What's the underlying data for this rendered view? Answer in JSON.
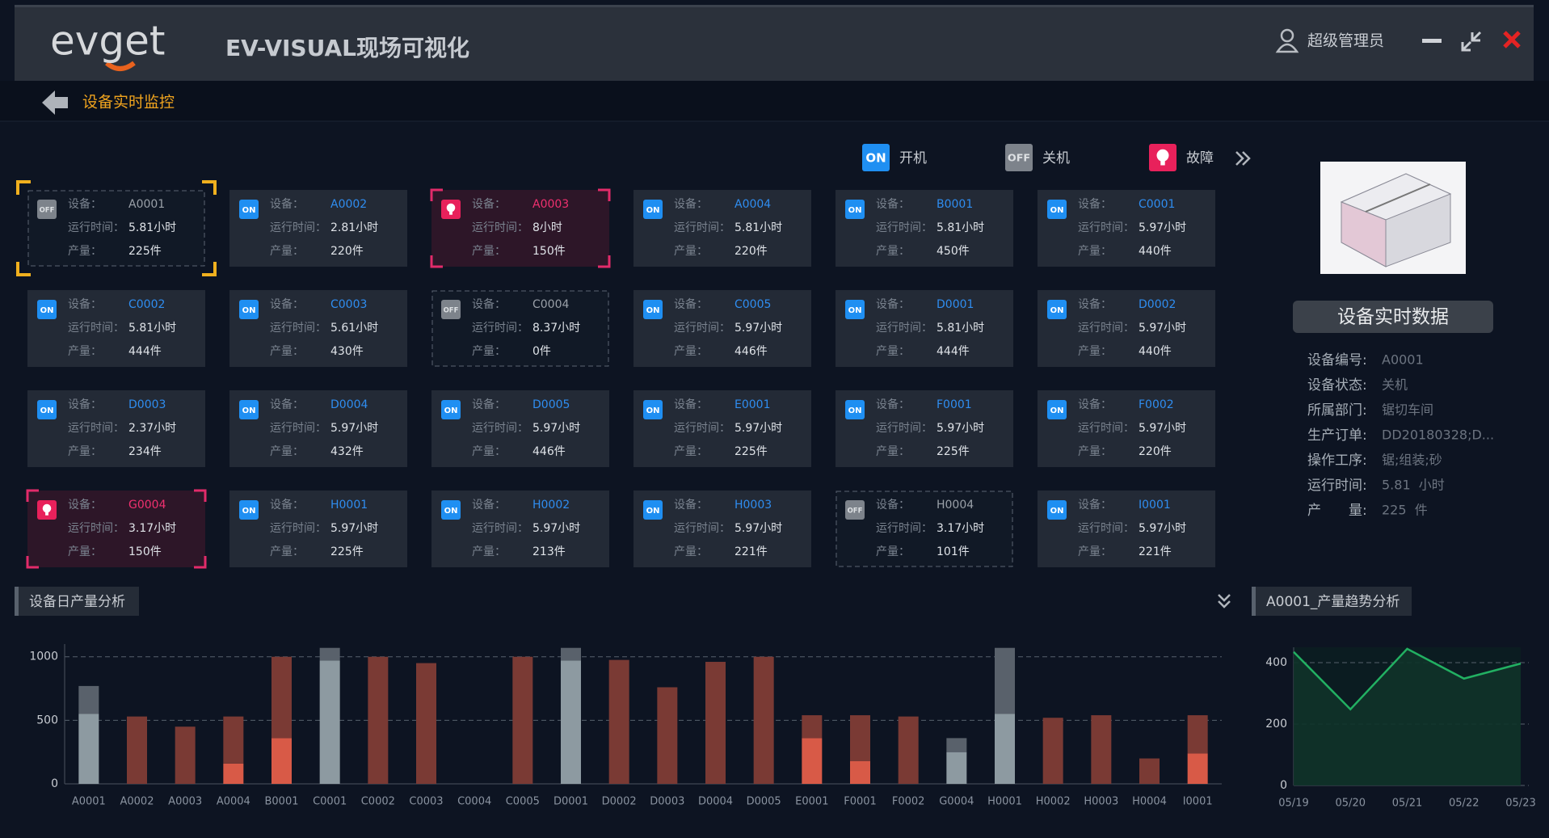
{
  "header": {
    "logo": "evget",
    "title": "EV-VISUAL现场可视化",
    "user": "超级管理员"
  },
  "breadcrumb": "设备实时监控",
  "legend": [
    {
      "badge": "ON",
      "label": "开机",
      "status": "on"
    },
    {
      "badge": "OFF",
      "label": "关机",
      "status": "off"
    },
    {
      "label": "故障",
      "status": "fault"
    }
  ],
  "card_labels": {
    "device": "设备：",
    "runtime": "运行时间：",
    "output": "产量："
  },
  "devices": [
    {
      "id": "A0001",
      "status": "off",
      "runtime": "5.81小时",
      "output": "225件",
      "selected": true
    },
    {
      "id": "A0002",
      "status": "on",
      "runtime": "2.81小时",
      "output": "220件"
    },
    {
      "id": "A0003",
      "status": "fault",
      "runtime": "8小时",
      "output": "150件"
    },
    {
      "id": "A0004",
      "status": "on",
      "runtime": "5.81小时",
      "output": "220件"
    },
    {
      "id": "B0001",
      "status": "on",
      "runtime": "5.81小时",
      "output": "450件"
    },
    {
      "id": "C0001",
      "status": "on",
      "runtime": "5.97小时",
      "output": "440件"
    },
    {
      "id": "C0002",
      "status": "on",
      "runtime": "5.81小时",
      "output": "444件"
    },
    {
      "id": "C0003",
      "status": "on",
      "runtime": "5.61小时",
      "output": "430件"
    },
    {
      "id": "C0004",
      "status": "off",
      "runtime": "8.37小时",
      "output": "0件"
    },
    {
      "id": "C0005",
      "status": "on",
      "runtime": "5.97小时",
      "output": "446件"
    },
    {
      "id": "D0001",
      "status": "on",
      "runtime": "5.81小时",
      "output": "444件"
    },
    {
      "id": "D0002",
      "status": "on",
      "runtime": "5.97小时",
      "output": "440件"
    },
    {
      "id": "D0003",
      "status": "on",
      "runtime": "2.37小时",
      "output": "234件"
    },
    {
      "id": "D0004",
      "status": "on",
      "runtime": "5.97小时",
      "output": "432件"
    },
    {
      "id": "D0005",
      "status": "on",
      "runtime": "5.97小时",
      "output": "446件"
    },
    {
      "id": "E0001",
      "status": "on",
      "runtime": "5.97小时",
      "output": "225件"
    },
    {
      "id": "F0001",
      "status": "on",
      "runtime": "5.97小时",
      "output": "225件"
    },
    {
      "id": "F0002",
      "status": "on",
      "runtime": "5.97小时",
      "output": "220件"
    },
    {
      "id": "G0004",
      "status": "fault",
      "runtime": "3.17小时",
      "output": "150件"
    },
    {
      "id": "H0001",
      "status": "on",
      "runtime": "5.97小时",
      "output": "225件"
    },
    {
      "id": "H0002",
      "status": "on",
      "runtime": "5.97小时",
      "output": "213件"
    },
    {
      "id": "H0003",
      "status": "on",
      "runtime": "5.97小时",
      "output": "221件"
    },
    {
      "id": "H0004",
      "status": "off",
      "runtime": "3.17小时",
      "output": "101件"
    },
    {
      "id": "I0001",
      "status": "on",
      "runtime": "5.97小时",
      "output": "221件"
    }
  ],
  "detail": {
    "button": "设备实时数据",
    "fields": [
      {
        "label": "设备编号:",
        "value": "A0001"
      },
      {
        "label": "设备状态:",
        "value": "关机"
      },
      {
        "label": "所属部门:",
        "value": "锯切车间"
      },
      {
        "label": "生产订单:",
        "value": "DD20180328;D..."
      },
      {
        "label": "操作工序:",
        "value": "锯;组装;砂"
      },
      {
        "label": "运行时间:",
        "value": "5.81  小时"
      },
      {
        "label": "产　　量:",
        "value": "225  件"
      }
    ]
  },
  "chart_data": [
    {
      "type": "bar",
      "title": "设备日产量分析",
      "categories": [
        "A0001",
        "A0002",
        "A0003",
        "A0004",
        "B0001",
        "C0001",
        "C0002",
        "C0003",
        "C0004",
        "C0005",
        "D0001",
        "D0002",
        "D0003",
        "D0004",
        "D0005",
        "E0001",
        "F0001",
        "F0002",
        "G0004",
        "H0001",
        "H0002",
        "H0003",
        "H0004",
        "I0001"
      ],
      "series": [
        {
          "color": "#8d9aa1",
          "values": [
            550,
            null,
            null,
            null,
            null,
            970,
            null,
            null,
            null,
            null,
            970,
            null,
            null,
            null,
            null,
            null,
            null,
            null,
            250,
            550,
            null,
            null,
            null,
            null
          ]
        },
        {
          "color": "#d85a47",
          "values": [
            null,
            null,
            null,
            160,
            360,
            null,
            null,
            null,
            null,
            null,
            null,
            null,
            null,
            null,
            null,
            360,
            180,
            null,
            null,
            null,
            null,
            null,
            null,
            240
          ]
        },
        {
          "color": "#59616b",
          "values": [
            220,
            null,
            null,
            null,
            null,
            100,
            null,
            null,
            null,
            null,
            100,
            null,
            null,
            null,
            null,
            null,
            null,
            null,
            110,
            520,
            null,
            null,
            null,
            null
          ]
        },
        {
          "color": "#7a3a34",
          "values": [
            null,
            530,
            450,
            370,
            640,
            null,
            1000,
            950,
            0,
            1000,
            null,
            975,
            760,
            960,
            1000,
            180,
            360,
            530,
            null,
            null,
            520,
            540,
            200,
            300
          ]
        }
      ],
      "ylim": [
        0,
        1100
      ],
      "yticks": [
        0,
        500,
        1000
      ],
      "grid": true,
      "stacked": true
    },
    {
      "type": "line",
      "title": "A0001_产量趋势分析",
      "categories": [
        "05/19",
        "05/20",
        "05/21",
        "05/22",
        "05/23"
      ],
      "values": [
        435,
        248,
        445,
        348,
        397
      ],
      "color": "#22b062",
      "ylim": [
        0,
        450
      ],
      "yticks": [
        0,
        200,
        400
      ],
      "grid": true,
      "area": true
    }
  ]
}
